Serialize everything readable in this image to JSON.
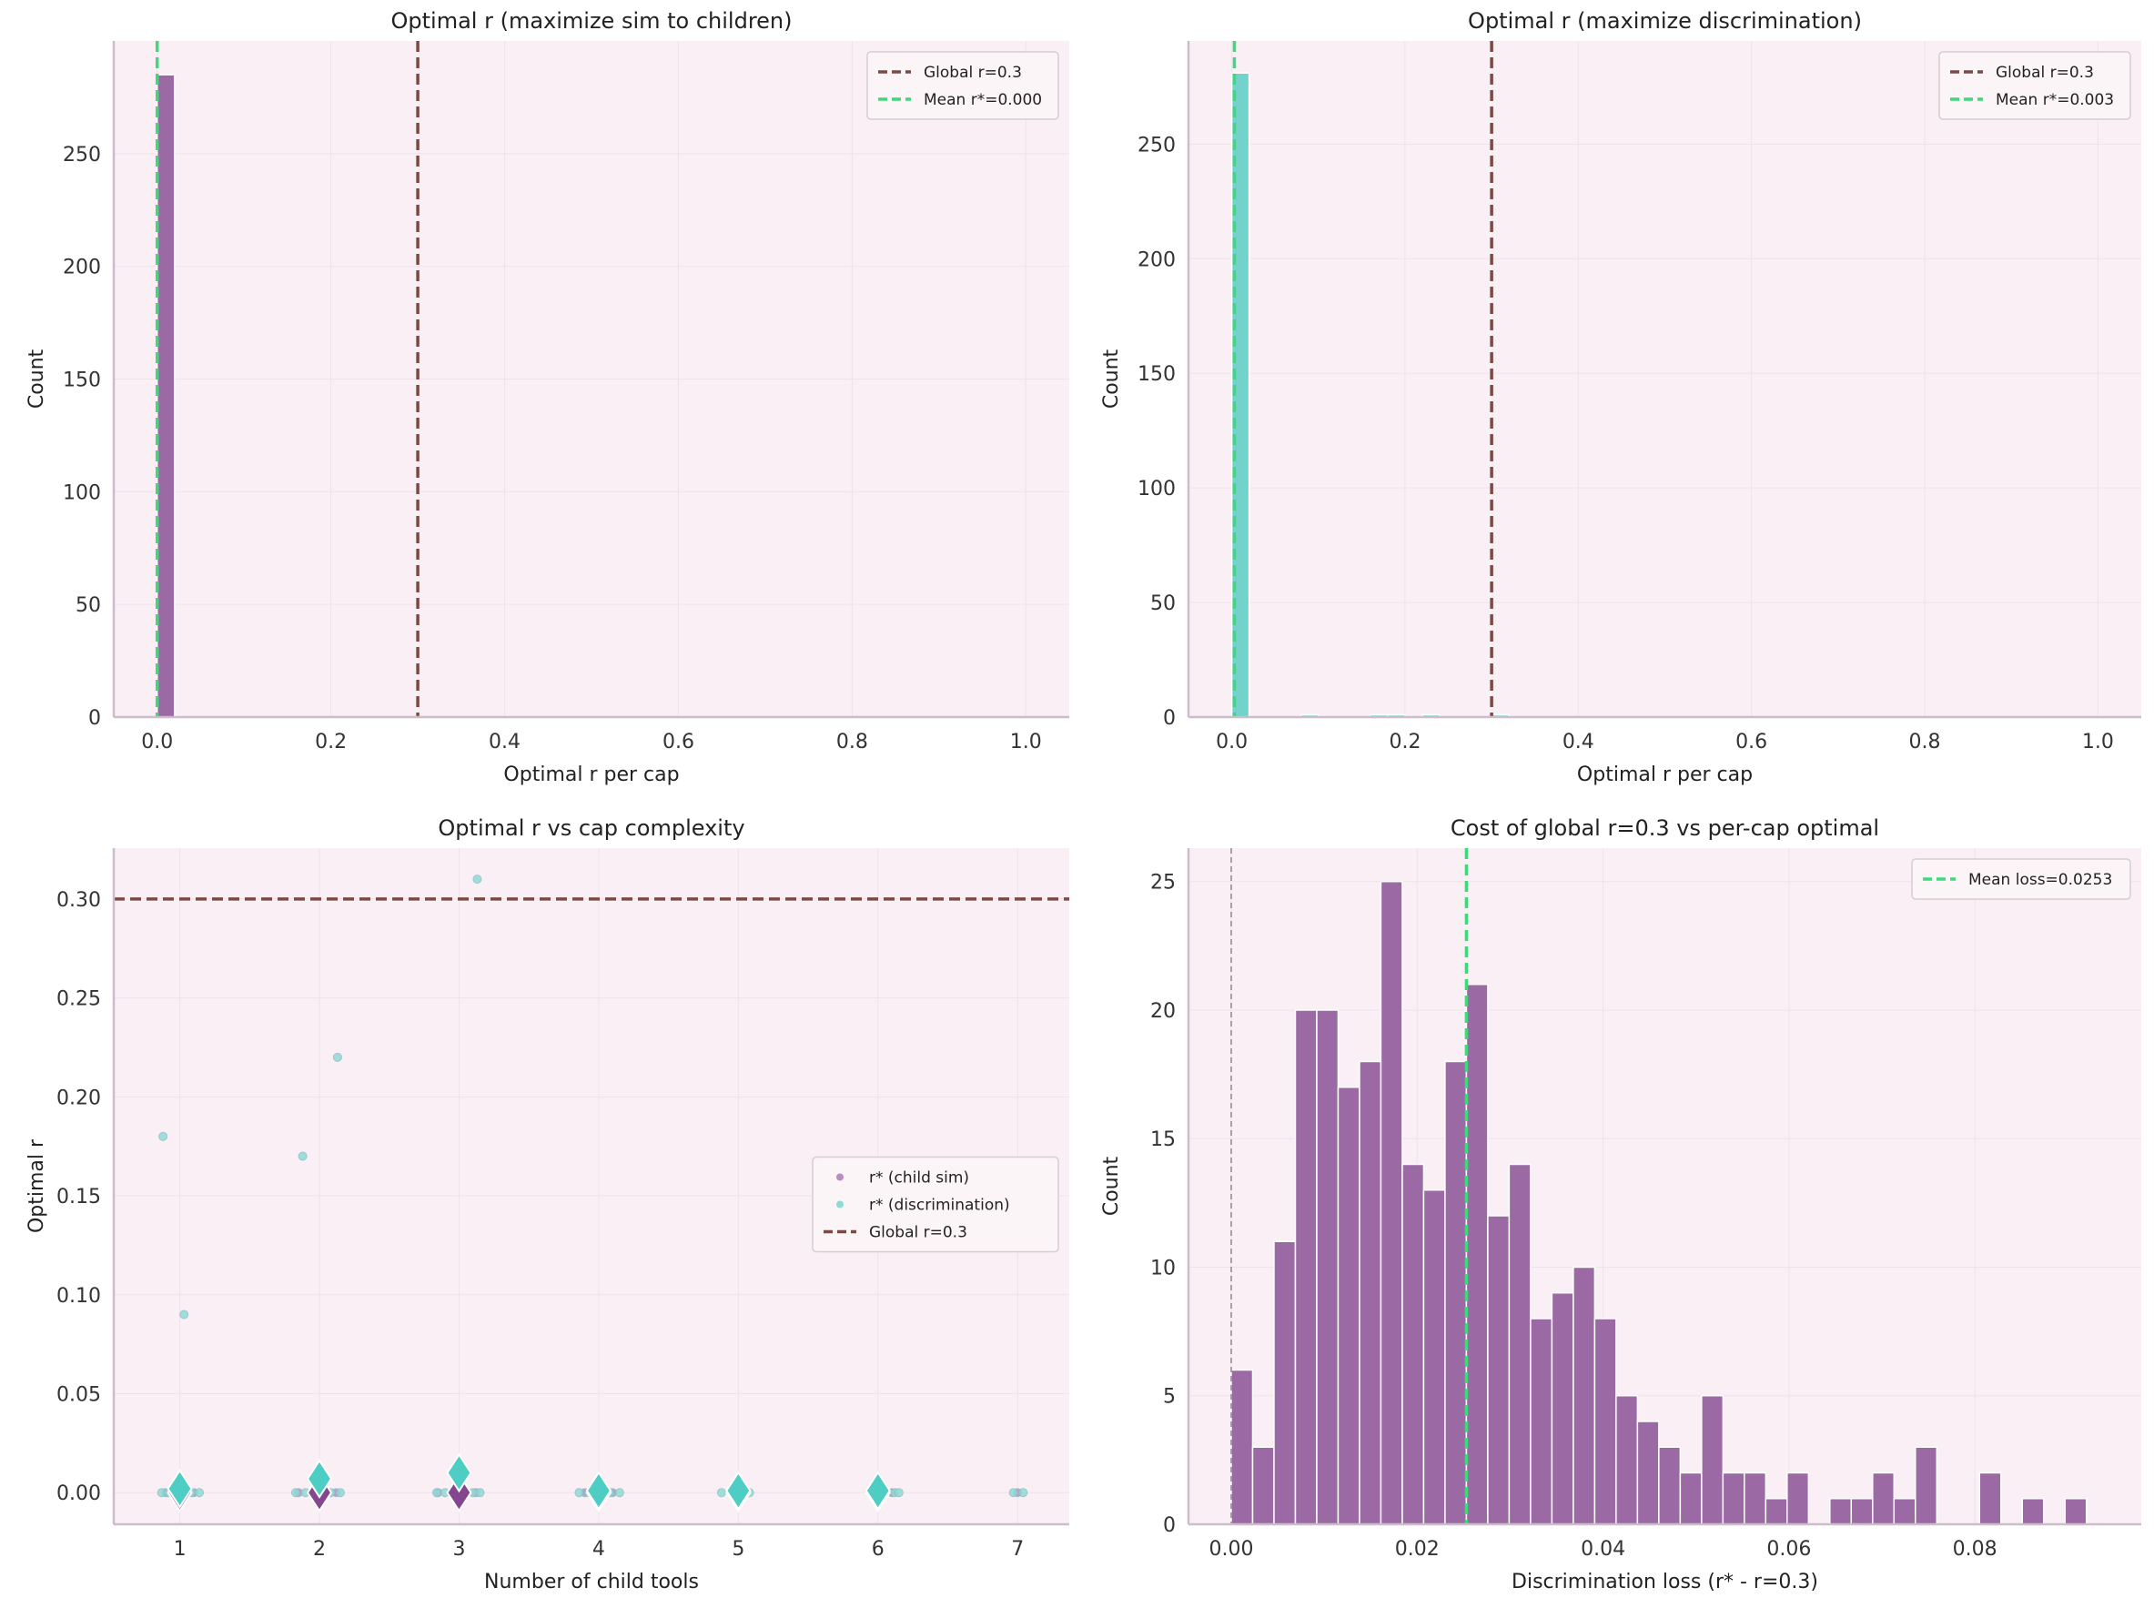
{
  "colors": {
    "bg": "#f9eff5",
    "purple": "#9b69a4",
    "cyan": "#72d3cd",
    "global": "#7b4a45",
    "mean": "#3fd87a",
    "diamond_cyan": "#4ecdc4",
    "diamond_purple": "#83468f",
    "axis": "#cdbccb"
  },
  "chart_data": [
    {
      "type": "bar",
      "title": "Optimal r (maximize sim to children)",
      "xlabel": "Optimal r per cap",
      "ylabel": "Count",
      "xlim": [
        -0.05,
        1.05
      ],
      "ylim": [
        0,
        300
      ],
      "xticks": [
        0.0,
        0.2,
        0.4,
        0.6,
        0.8,
        1.0
      ],
      "xtick_labels": [
        "0.0",
        "0.2",
        "0.4",
        "0.6",
        "0.8",
        "1.0"
      ],
      "yticks": [
        0,
        50,
        100,
        150,
        200,
        250
      ],
      "ytick_labels": [
        "0",
        "50",
        "100",
        "150",
        "200",
        "250"
      ],
      "bins": [
        {
          "x0": 0.0,
          "x1": 0.02,
          "count": 285
        }
      ],
      "color": "#9b69a4",
      "vlines": [
        {
          "x": 0.3,
          "label": "Global r=0.3",
          "color": "#7b4a45"
        },
        {
          "x": 0.0,
          "label": "Mean r*=0.000",
          "color": "#3fd87a"
        }
      ],
      "legend": "top-right",
      "grid": true
    },
    {
      "type": "bar",
      "title": "Optimal r (maximize discrimination)",
      "xlabel": "Optimal r per cap",
      "ylabel": "Count",
      "xlim": [
        -0.05,
        1.05
      ],
      "ylim": [
        0,
        295
      ],
      "xticks": [
        0.0,
        0.2,
        0.4,
        0.6,
        0.8,
        1.0
      ],
      "xtick_labels": [
        "0.0",
        "0.2",
        "0.4",
        "0.6",
        "0.8",
        "1.0"
      ],
      "yticks": [
        0,
        50,
        100,
        150,
        200,
        250
      ],
      "ytick_labels": [
        "0",
        "50",
        "100",
        "150",
        "200",
        "250"
      ],
      "bins": [
        {
          "x0": 0.0,
          "x1": 0.02,
          "count": 281
        },
        {
          "x0": 0.08,
          "x1": 0.1,
          "count": 1
        },
        {
          "x0": 0.16,
          "x1": 0.18,
          "count": 1
        },
        {
          "x0": 0.18,
          "x1": 0.2,
          "count": 1
        },
        {
          "x0": 0.22,
          "x1": 0.24,
          "count": 1
        },
        {
          "x0": 0.3,
          "x1": 0.32,
          "count": 1
        }
      ],
      "color": "#72d3cd",
      "vlines": [
        {
          "x": 0.3,
          "label": "Global r=0.3",
          "color": "#7b4a45"
        },
        {
          "x": 0.003,
          "label": "Mean r*=0.003",
          "color": "#3fd87a"
        }
      ],
      "legend": "top-right",
      "grid": true
    },
    {
      "type": "scatter",
      "title": "Optimal r vs cap complexity",
      "xlabel": "Number of child tools",
      "ylabel": "Optimal r",
      "xlim": [
        0.527,
        7.37
      ],
      "ylim": [
        -0.016,
        0.3257
      ],
      "xticks": [
        1,
        2,
        3,
        4,
        5,
        6,
        7
      ],
      "xtick_labels": [
        "1",
        "2",
        "3",
        "4",
        "5",
        "6",
        "7"
      ],
      "yticks": [
        0,
        0.05,
        0.1,
        0.15,
        0.2,
        0.25,
        0.3
      ],
      "ytick_labels": [
        "0.00",
        "0.05",
        "0.10",
        "0.15",
        "0.20",
        "0.25",
        "0.30"
      ],
      "series": [
        {
          "name": "r* (child sim)",
          "color": "#b98dc0",
          "points": [
            [
              0.9,
              0
            ],
            [
              0.95,
              0
            ],
            [
              1.05,
              0
            ],
            [
              1.1,
              0
            ],
            [
              1.85,
              0
            ],
            [
              1.95,
              0
            ],
            [
              2.05,
              0
            ],
            [
              2.12,
              0
            ],
            [
              2.85,
              0
            ],
            [
              2.95,
              0
            ],
            [
              3.05,
              0
            ],
            [
              3.12,
              0
            ],
            [
              3.9,
              0
            ],
            [
              4.1,
              0
            ],
            [
              5.0,
              0
            ],
            [
              6.1,
              0
            ],
            [
              7.0,
              0
            ]
          ]
        },
        {
          "name": "r* (discrimination)",
          "color": "#8fdad5",
          "points": [
            [
              0.88,
              0.18
            ],
            [
              1.03,
              0.09
            ],
            [
              1.88,
              0.17
            ],
            [
              2.13,
              0.22
            ],
            [
              3.13,
              0.31
            ],
            [
              0.87,
              0
            ],
            [
              0.92,
              0
            ],
            [
              1.08,
              0
            ],
            [
              1.14,
              0
            ],
            [
              1.83,
              0
            ],
            [
              1.9,
              0
            ],
            [
              2.08,
              0
            ],
            [
              2.15,
              0
            ],
            [
              2.84,
              0
            ],
            [
              2.9,
              0
            ],
            [
              3.1,
              0
            ],
            [
              3.15,
              0
            ],
            [
              3.86,
              0
            ],
            [
              3.93,
              0
            ],
            [
              4.08,
              0
            ],
            [
              4.15,
              0
            ],
            [
              4.88,
              0
            ],
            [
              5.08,
              0
            ],
            [
              6.12,
              0
            ],
            [
              6.15,
              0
            ],
            [
              6.97,
              0
            ],
            [
              7.04,
              0
            ]
          ]
        }
      ],
      "means": [
        {
          "color": "#83468f",
          "points": [
            [
              1,
              0
            ],
            [
              2,
              0
            ],
            [
              3,
              0
            ],
            [
              4,
              0
            ],
            [
              5,
              0
            ],
            [
              6,
              0
            ]
          ]
        },
        {
          "color": "#4ecdc4",
          "points": [
            [
              1,
              0.002
            ],
            [
              2,
              0.007
            ],
            [
              3,
              0.01
            ],
            [
              4,
              0.001
            ],
            [
              5,
              0.001
            ],
            [
              6,
              0.001
            ]
          ]
        }
      ],
      "hlines": [
        {
          "y": 0.3,
          "label": "Global r=0.3",
          "color": "#7b4a45"
        }
      ],
      "legend": "center-right",
      "grid": true
    },
    {
      "type": "bar",
      "title": "Cost of global r=0.3 vs per-cap optimal",
      "xlabel": "Discrimination loss (r* - r=0.3)",
      "ylabel": "Count",
      "xlim": [
        -0.0046,
        0.0979
      ],
      "ylim": [
        0,
        26.3
      ],
      "xticks": [
        0,
        0.02,
        0.04,
        0.06,
        0.08
      ],
      "xtick_labels": [
        "0.00",
        "0.02",
        "0.04",
        "0.06",
        "0.08"
      ],
      "yticks": [
        0,
        5,
        10,
        15,
        20,
        25
      ],
      "ytick_labels": [
        "0",
        "5",
        "10",
        "15",
        "20",
        "25"
      ],
      "bin_start": 0.0,
      "bin_width": 0.0023,
      "counts": [
        6,
        3,
        11,
        20,
        20,
        17,
        18,
        25,
        14,
        13,
        18,
        21,
        12,
        14,
        8,
        9,
        10,
        8,
        5,
        4,
        3,
        2,
        5,
        2,
        2,
        1,
        2,
        0,
        1,
        1,
        2,
        1,
        3,
        0,
        0,
        2,
        0,
        1,
        0,
        1
      ],
      "color": "#9b69a4",
      "vlines": [
        {
          "x": 0.0253,
          "label": "Mean loss=0.0253",
          "color": "#3fd87a"
        },
        {
          "x": 0.0,
          "label": "",
          "color": "#9a8a92"
        }
      ],
      "legend": "top-right",
      "grid": true
    }
  ]
}
